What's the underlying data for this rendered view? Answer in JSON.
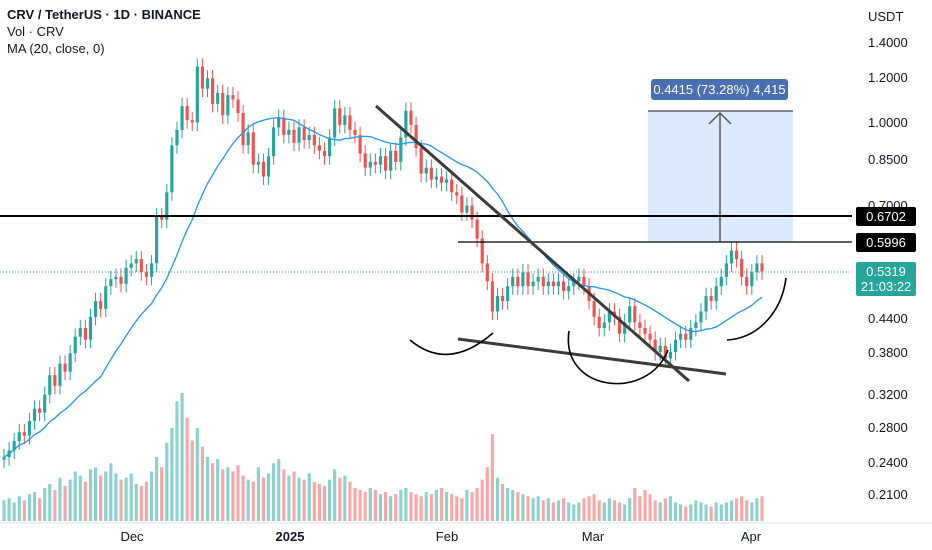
{
  "header": {
    "symbol_line": "CRV / TetherUS · 1D · BINANCE",
    "volume_line": "Vol · CRV",
    "ma_line": "MA (20, close, 0)"
  },
  "price_axis": {
    "currency": "USDT",
    "ticks": [
      "1.4000",
      "1.2000",
      "1.0000",
      "0.8500",
      "0.7000",
      "0.4400",
      "0.3800",
      "0.3200",
      "0.2800",
      "0.2400",
      "0.2100"
    ]
  },
  "time_axis": {
    "labels": [
      "Dec",
      "2025",
      "Feb",
      "Mar",
      "Apr"
    ]
  },
  "price_tags": {
    "resistance": "0.6702",
    "neckline": "0.5996",
    "last": "0.5319",
    "countdown": "21:03:22"
  },
  "measure": {
    "label": "0.4415 (73.28%) 4,415"
  },
  "colors": {
    "up": "#26a69a",
    "down": "#ef5350",
    "vol_up": "#8ad3cc",
    "vol_down": "#f7a8a6",
    "ma": "#2196f3",
    "measure_fill": "#dbeafd",
    "measure_label_bg": "#4a6fb0"
  },
  "chart_data": {
    "type": "candlestick",
    "series_ma": "MA (20, close, 0)",
    "y_scale": "log",
    "ylim": [
      0.18,
      1.55
    ],
    "x_labels": [
      "Dec",
      "2025",
      "Feb",
      "Mar",
      "Apr"
    ],
    "closes": [
      0.245,
      0.252,
      0.262,
      0.272,
      0.268,
      0.285,
      0.3,
      0.295,
      0.318,
      0.345,
      0.33,
      0.362,
      0.35,
      0.378,
      0.405,
      0.42,
      0.4,
      0.44,
      0.47,
      0.455,
      0.5,
      0.515,
      0.52,
      0.505,
      0.54,
      0.55,
      0.56,
      0.53,
      0.52,
      0.55,
      0.67,
      0.66,
      0.74,
      0.9,
      0.96,
      1.06,
      1.0,
      0.99,
      1.25,
      1.14,
      1.19,
      1.07,
      1.12,
      1.02,
      1.11,
      1.09,
      1.03,
      0.9,
      0.95,
      0.83,
      0.84,
      0.79,
      0.86,
      0.97,
      1.01,
      0.94,
      0.96,
      0.91,
      0.97,
      0.92,
      0.94,
      0.9,
      0.88,
      0.86,
      0.93,
      1.05,
      0.98,
      1.02,
      0.96,
      0.94,
      0.87,
      0.82,
      0.84,
      0.83,
      0.86,
      0.81,
      0.88,
      0.84,
      0.93,
      1.04,
      0.98,
      0.89,
      0.8,
      0.82,
      0.78,
      0.79,
      0.77,
      0.78,
      0.74,
      0.73,
      0.68,
      0.7,
      0.66,
      0.61,
      0.55,
      0.51,
      0.45,
      0.48,
      0.47,
      0.5,
      0.52,
      0.5,
      0.53,
      0.5,
      0.51,
      0.52,
      0.5,
      0.51,
      0.5,
      0.51,
      0.49,
      0.5,
      0.51,
      0.52,
      0.5,
      0.47,
      0.44,
      0.42,
      0.43,
      0.45,
      0.44,
      0.41,
      0.43,
      0.46,
      0.43,
      0.42,
      0.41,
      0.4,
      0.38,
      0.39,
      0.37,
      0.38,
      0.4,
      0.41,
      0.4,
      0.42,
      0.43,
      0.45,
      0.48,
      0.47,
      0.5,
      0.52,
      0.55,
      0.58,
      0.56,
      0.52,
      0.5,
      0.53,
      0.55,
      0.5319
    ],
    "volumes": [
      1.0,
      1.1,
      0.9,
      1.2,
      1.0,
      1.3,
      1.4,
      1.1,
      1.6,
      1.8,
      1.5,
      2.1,
      1.7,
      2.0,
      2.4,
      2.2,
      1.9,
      2.5,
      2.6,
      2.2,
      2.4,
      2.8,
      2.3,
      2.0,
      2.1,
      2.3,
      1.8,
      1.7,
      1.9,
      2.4,
      3.1,
      2.6,
      3.8,
      4.5,
      5.8,
      6.2,
      5.0,
      3.9,
      4.5,
      3.6,
      3.1,
      2.8,
      3.0,
      2.5,
      2.6,
      2.4,
      2.7,
      2.2,
      2.0,
      1.9,
      2.6,
      2.1,
      2.3,
      2.8,
      3.0,
      2.5,
      2.2,
      2.4,
      2.1,
      2.0,
      2.3,
      1.9,
      1.8,
      1.7,
      2.0,
      2.5,
      2.1,
      2.2,
      1.9,
      1.6,
      1.5,
      1.4,
      1.6,
      1.5,
      1.3,
      1.4,
      1.2,
      1.3,
      1.5,
      1.6,
      1.4,
      1.3,
      1.2,
      1.4,
      1.3,
      1.5,
      1.6,
      1.4,
      1.3,
      1.2,
      1.1,
      1.5,
      1.4,
      1.6,
      2.0,
      2.6,
      4.2,
      2.1,
      1.8,
      1.6,
      1.5,
      1.4,
      1.3,
      1.2,
      1.1,
      1.2,
      1.0,
      1.1,
      0.9,
      1.0,
      1.1,
      0.9,
      0.8,
      0.9,
      1.1,
      1.2,
      1.3,
      1.0,
      0.9,
      1.1,
      1.0,
      0.9,
      0.8,
      1.1,
      1.6,
      1.2,
      1.5,
      1.3,
      1.0,
      0.9,
      1.1,
      1.2,
      0.9,
      0.8,
      0.7,
      0.8,
      1.0,
      0.9,
      0.8,
      0.7,
      0.9,
      0.8,
      0.9,
      1.0,
      1.1,
      1.2,
      1.0,
      0.9,
      1.1,
      1.2,
      0.3
    ]
  }
}
